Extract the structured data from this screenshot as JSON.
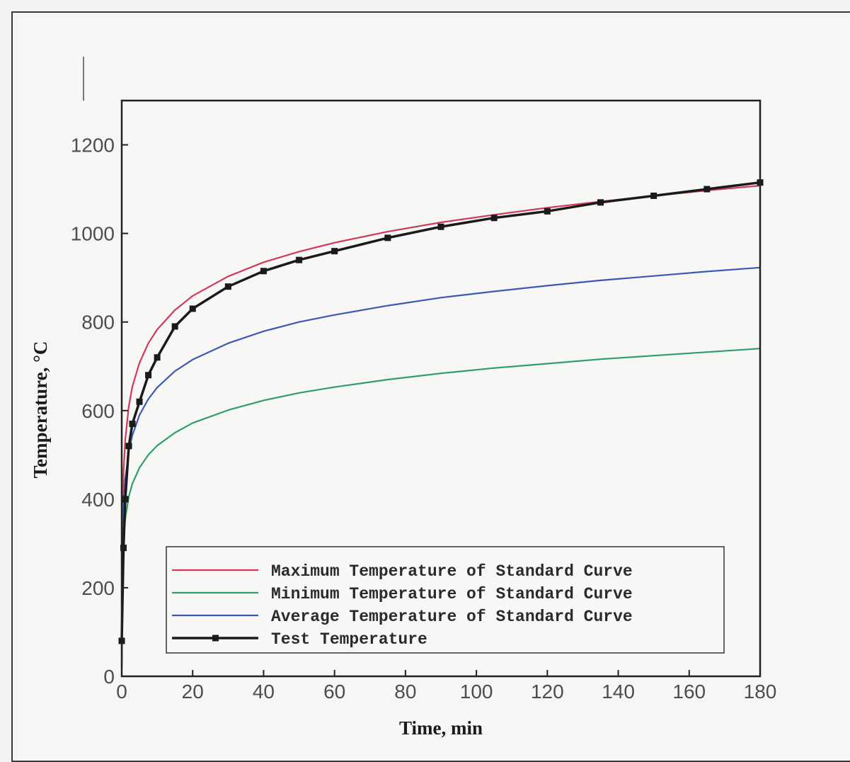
{
  "chart_data": {
    "type": "line",
    "xlabel": "Time, min",
    "ylabel": "Temperature, °C",
    "xlim": [
      0,
      180
    ],
    "ylim": [
      0,
      1300
    ],
    "xticks": [
      "0",
      "20",
      "40",
      "60",
      "80",
      "100",
      "120",
      "140",
      "160",
      "180"
    ],
    "yticks": [
      "0",
      "200",
      "400",
      "600",
      "800",
      "1000",
      "1200"
    ],
    "grid": false,
    "legend_position": "bottom-left",
    "x": [
      0,
      0.5,
      1,
      2,
      3,
      5,
      7.5,
      10,
      15,
      20,
      30,
      40,
      50,
      60,
      75,
      90,
      105,
      120,
      135,
      150,
      165,
      180
    ],
    "series": [
      {
        "name": "Maximum Temperature of Standard Curve",
        "color": "#d2385a",
        "marker": false,
        "values": [
          20,
          461,
          535,
          610,
          654,
          708,
          752,
          783,
          827,
          859,
          903,
          935,
          959,
          979,
          1004,
          1025,
          1042,
          1058,
          1072,
          1085,
          1097,
          1108
        ]
      },
      {
        "name": "Minimum Temperature of Standard Curve",
        "color": "#2e9e6a",
        "marker": false,
        "values": [
          20,
          306,
          356,
          406,
          435,
          471,
          500,
          521,
          550,
          572,
          601,
          623,
          640,
          653,
          670,
          684,
          696,
          706,
          716,
          724,
          732,
          740
        ]
      },
      {
        "name": "Average Temperature of Standard Curve",
        "color": "#3e58b4",
        "marker": false,
        "values": [
          20,
          384,
          446,
          508,
          544,
          590,
          626,
          652,
          689,
          715,
          752,
          779,
          800,
          816,
          837,
          855,
          869,
          882,
          894,
          904,
          914,
          923
        ]
      },
      {
        "name": "Test",
        "color": "#1a1a1a",
        "marker": true,
        "values": [
          80,
          290,
          400,
          520,
          570,
          620,
          680,
          720,
          790,
          830,
          880,
          915,
          940,
          960,
          990,
          1015,
          1035,
          1050,
          1070,
          1085,
          1100,
          1115
        ]
      }
    ],
    "legend_entries": [
      "Maximum Temperature of Standard Curve",
      "Minimum Temperature of Standard Curve",
      "Average Temperature of Standard Curve",
      "Test     Temperature"
    ]
  }
}
